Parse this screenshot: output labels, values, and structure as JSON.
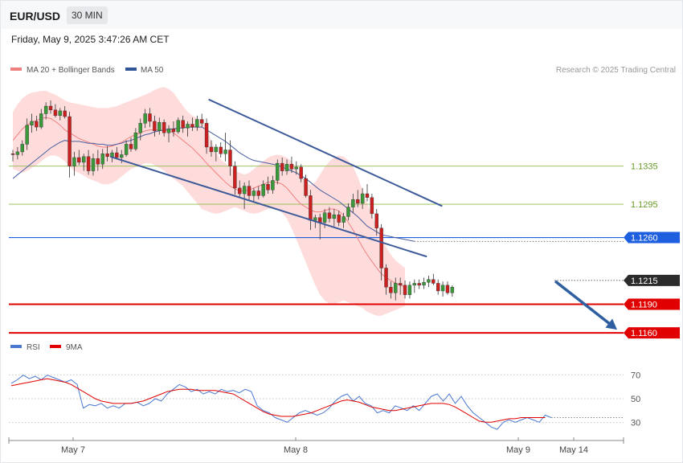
{
  "header": {
    "pair": "EUR/USD",
    "timeframe": "30 MIN"
  },
  "timestamp": "Friday, May 9, 2025 3:47:26 AM CET",
  "legend": [
    {
      "label": "MA 20 + Bollinger Bands",
      "color": "#f08080"
    },
    {
      "label": "MA 50",
      "color": "#2f5597"
    }
  ],
  "rsi_legend": [
    {
      "label": "RSI",
      "color": "#4a78d0"
    },
    {
      "label": "9MA",
      "color": "#e00000"
    }
  ],
  "copyright": "Research © 2025 Trading Central",
  "colors": {
    "bollinger": "#ffd6d6",
    "candle_up": "#3a9a3a",
    "candle_down": "#cc1f1f",
    "channel": "#3d5a99",
    "arrow": "#2f5fa0"
  },
  "chart_data": {
    "type": "candlestick",
    "ylim": [
      1.1155,
      1.1425
    ],
    "x_tick_labels": [
      "May 7",
      "May 8",
      "May 9",
      "May 14"
    ],
    "price_levels": [
      {
        "label": "1.1335",
        "value": 1.1335,
        "kind": "resistance",
        "color": "#8dbb4d"
      },
      {
        "label": "1.1295",
        "value": 1.1295,
        "kind": "resistance",
        "color": "#8dbb4d"
      },
      {
        "label": "1.1260",
        "value": 1.126,
        "kind": "pivot",
        "color": "#1e5fe0"
      },
      {
        "label": "1.1215",
        "value": 1.1215,
        "kind": "last",
        "color": "#222222"
      },
      {
        "label": "1.1190",
        "value": 1.119,
        "kind": "support",
        "color": "#e00000"
      },
      {
        "label": "1.1160",
        "value": 1.116,
        "kind": "support",
        "color": "#e00000"
      }
    ],
    "candles": [
      [
        1.1348,
        1.1352,
        1.134,
        1.1347
      ],
      [
        1.1347,
        1.1355,
        1.1342,
        1.135
      ],
      [
        1.135,
        1.1362,
        1.1346,
        1.1358
      ],
      [
        1.1358,
        1.1385,
        1.1352,
        1.1378
      ],
      [
        1.1378,
        1.139,
        1.137,
        1.1382
      ],
      [
        1.1382,
        1.1388,
        1.1372,
        1.1376
      ],
      [
        1.1376,
        1.1395,
        1.1374,
        1.139
      ],
      [
        1.139,
        1.1402,
        1.1384,
        1.1398
      ],
      [
        1.1398,
        1.1404,
        1.139,
        1.1394
      ],
      [
        1.1394,
        1.14,
        1.1386,
        1.1388
      ],
      [
        1.1388,
        1.1396,
        1.1383,
        1.1393
      ],
      [
        1.1393,
        1.1398,
        1.1385,
        1.1387
      ],
      [
        1.1387,
        1.1392,
        1.1323,
        1.1335
      ],
      [
        1.1335,
        1.135,
        1.1325,
        1.1344
      ],
      [
        1.1344,
        1.1352,
        1.1336,
        1.1339
      ],
      [
        1.1339,
        1.1348,
        1.133,
        1.1345
      ],
      [
        1.1345,
        1.1352,
        1.1326,
        1.133
      ],
      [
        1.133,
        1.1348,
        1.1325,
        1.1343
      ],
      [
        1.1343,
        1.1352,
        1.133,
        1.1337
      ],
      [
        1.1337,
        1.1353,
        1.1332,
        1.1348
      ],
      [
        1.1348,
        1.1356,
        1.134,
        1.1345
      ],
      [
        1.1345,
        1.1352,
        1.1339,
        1.1349
      ],
      [
        1.1349,
        1.1355,
        1.1342,
        1.1344
      ],
      [
        1.1344,
        1.1352,
        1.1338,
        1.1347
      ],
      [
        1.1347,
        1.1362,
        1.1345,
        1.1358
      ],
      [
        1.1358,
        1.1365,
        1.135,
        1.1353
      ],
      [
        1.1353,
        1.1375,
        1.1351,
        1.137
      ],
      [
        1.137,
        1.1385,
        1.1362,
        1.138
      ],
      [
        1.138,
        1.1395,
        1.1375,
        1.139
      ],
      [
        1.139,
        1.1396,
        1.1376,
        1.1382
      ],
      [
        1.1382,
        1.1388,
        1.1366,
        1.1372
      ],
      [
        1.1372,
        1.1386,
        1.1368,
        1.1381
      ],
      [
        1.1381,
        1.1384,
        1.1366,
        1.137
      ],
      [
        1.137,
        1.1378,
        1.136,
        1.1374
      ],
      [
        1.1374,
        1.1382,
        1.1366,
        1.1371
      ],
      [
        1.1371,
        1.1386,
        1.1369,
        1.1383
      ],
      [
        1.1383,
        1.1388,
        1.137,
        1.1375
      ],
      [
        1.1375,
        1.1382,
        1.1366,
        1.1379
      ],
      [
        1.1379,
        1.1386,
        1.1372,
        1.1376
      ],
      [
        1.1376,
        1.1388,
        1.1372,
        1.1384
      ],
      [
        1.1384,
        1.139,
        1.1376,
        1.138
      ],
      [
        1.138,
        1.1385,
        1.1348,
        1.1355
      ],
      [
        1.1355,
        1.1362,
        1.1345,
        1.135
      ],
      [
        1.135,
        1.1358,
        1.134,
        1.1355
      ],
      [
        1.1355,
        1.136,
        1.1344,
        1.1348
      ],
      [
        1.1348,
        1.137,
        1.134,
        1.1352
      ],
      [
        1.1352,
        1.1362,
        1.1325,
        1.1335
      ],
      [
        1.1335,
        1.134,
        1.1305,
        1.1312
      ],
      [
        1.1312,
        1.132,
        1.1302,
        1.1306
      ],
      [
        1.1306,
        1.1318,
        1.129,
        1.1314
      ],
      [
        1.1314,
        1.132,
        1.1298,
        1.1304
      ],
      [
        1.1304,
        1.1312,
        1.1298,
        1.1309
      ],
      [
        1.1309,
        1.1314,
        1.13,
        1.1304
      ],
      [
        1.1304,
        1.132,
        1.1302,
        1.1316
      ],
      [
        1.1316,
        1.1324,
        1.1306,
        1.131
      ],
      [
        1.131,
        1.1325,
        1.1306,
        1.132
      ],
      [
        1.132,
        1.1342,
        1.1316,
        1.1338
      ],
      [
        1.1338,
        1.1344,
        1.1325,
        1.133
      ],
      [
        1.133,
        1.1342,
        1.1326,
        1.1337
      ],
      [
        1.1337,
        1.1345,
        1.1328,
        1.1332
      ],
      [
        1.1332,
        1.134,
        1.1326,
        1.1334
      ],
      [
        1.1334,
        1.1337,
        1.1318,
        1.1322
      ],
      [
        1.1322,
        1.1326,
        1.1302,
        1.1304
      ],
      [
        1.1304,
        1.131,
        1.1268,
        1.1278
      ],
      [
        1.1278,
        1.1284,
        1.127,
        1.1281
      ],
      [
        1.1281,
        1.1285,
        1.1258,
        1.1276
      ],
      [
        1.1276,
        1.129,
        1.127,
        1.1286
      ],
      [
        1.1286,
        1.1292,
        1.1276,
        1.128
      ],
      [
        1.128,
        1.129,
        1.1272,
        1.1284
      ],
      [
        1.1284,
        1.1288,
        1.1272,
        1.1276
      ],
      [
        1.1276,
        1.1286,
        1.127,
        1.1282
      ],
      [
        1.1282,
        1.1296,
        1.1278,
        1.1292
      ],
      [
        1.1292,
        1.1306,
        1.1286,
        1.13
      ],
      [
        1.13,
        1.131,
        1.1292,
        1.1296
      ],
      [
        1.1296,
        1.1312,
        1.129,
        1.1306
      ],
      [
        1.1306,
        1.1316,
        1.1298,
        1.1302
      ],
      [
        1.1302,
        1.1306,
        1.128,
        1.1285
      ],
      [
        1.1285,
        1.129,
        1.1262,
        1.127
      ],
      [
        1.127,
        1.1274,
        1.1215,
        1.1228
      ],
      [
        1.1228,
        1.1232,
        1.12,
        1.1208
      ],
      [
        1.1208,
        1.1214,
        1.1196,
        1.1202
      ],
      [
        1.1202,
        1.1218,
        1.1194,
        1.1212
      ],
      [
        1.1212,
        1.1218,
        1.12,
        1.121
      ],
      [
        1.121,
        1.1215,
        1.1196,
        1.12
      ],
      [
        1.12,
        1.1214,
        1.1196,
        1.121
      ],
      [
        1.121,
        1.1216,
        1.1202,
        1.1212
      ],
      [
        1.1212,
        1.1216,
        1.1206,
        1.121
      ],
      [
        1.121,
        1.1218,
        1.1206,
        1.1213
      ],
      [
        1.1213,
        1.122,
        1.1208,
        1.1216
      ],
      [
        1.1216,
        1.1222,
        1.121,
        1.1212
      ],
      [
        1.1212,
        1.1216,
        1.12,
        1.1204
      ],
      [
        1.1204,
        1.1214,
        1.1198,
        1.121
      ],
      [
        1.121,
        1.1214,
        1.12,
        1.1202
      ],
      [
        1.1202,
        1.121,
        1.1198,
        1.1208
      ]
    ],
    "ma50": [
      1.1322,
      1.1326,
      1.133,
      1.1334,
      1.1338,
      1.1342,
      1.1346,
      1.135,
      1.1354,
      1.1357,
      1.136,
      1.1362,
      1.1361,
      1.1361,
      1.1361,
      1.136,
      1.1359,
      1.1359,
      1.1358,
      1.1358,
      1.1357,
      1.1357,
      1.1358,
      1.1359,
      1.1361,
      1.1362,
      1.1364,
      1.1366,
      1.1368,
      1.1369,
      1.1371,
      1.1372,
      1.1373,
      1.1374,
      1.1374,
      1.1375,
      1.1375,
      1.1376,
      1.1376,
      1.1376,
      1.1376,
      1.1373,
      1.137,
      1.1367,
      1.1364,
      1.1361,
      1.1357,
      1.1353,
      1.1349,
      1.1346,
      1.1343,
      1.1341,
      1.134,
      1.1339,
      1.1338,
      1.1337,
      1.1336,
      1.1334,
      1.1332,
      1.133,
      1.1328,
      1.1325,
      1.1322,
      1.1318,
      1.1314,
      1.131,
      1.1307,
      1.1304,
      1.1301,
      1.1298,
      1.1294,
      1.129,
      1.1286,
      1.1282,
      1.1277,
      1.1272,
      1.1269,
      1.1266,
      1.1263,
      1.1262,
      1.1261,
      1.126,
      1.1259,
      1.1258,
      1.1257,
      1.1256
    ],
    "ma20": [
      1.1362,
      1.1368,
      1.1374,
      1.1378,
      1.1381,
      1.1383,
      1.1385,
      1.1386,
      1.1385,
      1.1382,
      1.1378,
      1.1373,
      1.137,
      1.1367,
      1.1364,
      1.1362,
      1.136,
      1.1358,
      1.1356,
      1.1355,
      1.1355,
      1.1356,
      1.1358,
      1.136,
      1.1363,
      1.1366,
      1.1368,
      1.137,
      1.1372,
      1.1373,
      1.1373,
      1.1373,
      1.1372,
      1.1372,
      1.137,
      1.1366,
      1.1362,
      1.1358,
      1.1354,
      1.1349,
      1.1344,
      1.1338,
      1.1333,
      1.1328,
      1.1323,
      1.1318,
      1.1314,
      1.1311,
      1.1309,
      1.1309,
      1.131,
      1.1312,
      1.1314,
      1.1316,
      1.1318,
      1.1318,
      1.1318,
      1.1316,
      1.1312,
      1.1306,
      1.13,
      1.1295,
      1.1292,
      1.1289,
      1.1287,
      1.1287,
      1.1288,
      1.129,
      1.129,
      1.1288,
      1.1283,
      1.1276,
      1.1268,
      1.1259,
      1.125,
      1.1242,
      1.1235,
      1.1228,
      1.1222,
      1.1218,
      1.1215,
      1.1212,
      1.121,
      1.1208
    ],
    "bb_upper": [
      1.1392,
      1.14,
      1.1406,
      1.141,
      1.1412,
      1.1413,
      1.1414,
      1.1414,
      1.1412,
      1.141,
      1.1407,
      1.1404,
      1.1402,
      1.1401,
      1.14,
      1.1399,
      1.1398,
      1.1397,
      1.1396,
      1.1396,
      1.1396,
      1.1397,
      1.1398,
      1.14,
      1.1402,
      1.1404,
      1.1406,
      1.1408,
      1.141,
      1.1412,
      1.1415,
      1.1417,
      1.1418,
      1.1416,
      1.1412,
      1.1405,
      1.1398,
      1.1392,
      1.1388,
      1.1385,
      1.1384,
      1.1375,
      1.1362,
      1.135,
      1.1342,
      1.1338,
      1.1334,
      1.133,
      1.1328,
      1.1326,
      1.1328,
      1.1332,
      1.1336,
      1.134,
      1.1344,
      1.1346,
      1.1347,
      1.1346,
      1.1344,
      1.134,
      1.1332,
      1.1324,
      1.1318,
      1.1315,
      1.1318,
      1.1326,
      1.1334,
      1.134,
      1.1344,
      1.1346,
      1.1345,
      1.1341,
      1.1334,
      1.1324,
      1.131,
      1.1296,
      1.1284,
      1.1272,
      1.126,
      1.125,
      1.1242,
      1.1236,
      1.1232,
      1.1228
    ],
    "bb_lower": [
      1.1332,
      1.133,
      1.1328,
      1.133,
      1.1333,
      1.1336,
      1.134,
      1.1344,
      1.1346,
      1.1346,
      1.1344,
      1.134,
      1.1335,
      1.133,
      1.1328,
      1.1325,
      1.1322,
      1.132,
      1.1318,
      1.1316,
      1.1316,
      1.1317,
      1.132,
      1.1324,
      1.1328,
      1.1332,
      1.1334,
      1.1336,
      1.1338,
      1.1338,
      1.1336,
      1.1333,
      1.133,
      1.1326,
      1.1322,
      1.1318,
      1.1314,
      1.1308,
      1.1302,
      1.1296,
      1.129,
      1.1288,
      1.1286,
      1.1285,
      1.1286,
      1.1288,
      1.129,
      1.1292,
      1.129,
      1.1288,
      1.1286,
      1.1285,
      1.1286,
      1.1288,
      1.129,
      1.1291,
      1.129,
      1.1286,
      1.128,
      1.127,
      1.1258,
      1.1246,
      1.1234,
      1.1222,
      1.121,
      1.12,
      1.1194,
      1.119,
      1.119,
      1.1192,
      1.1194,
      1.1192,
      1.119,
      1.1188,
      1.1186,
      1.1182,
      1.118,
      1.1178,
      1.1178,
      1.118,
      1.1182,
      1.1184,
      1.1186,
      1.1188
    ],
    "channel_upper": [
      [
        0.325,
        1.1405
      ],
      [
        0.705,
        1.1293
      ]
    ],
    "channel_lower": [
      [
        0.165,
        1.1345
      ],
      [
        0.68,
        1.124
      ]
    ],
    "projection": {
      "from": 1.1215,
      "to": 1.116
    },
    "rsi": {
      "ylim": [
        20,
        80
      ],
      "y_tick_labels": [
        "70",
        "50",
        "30"
      ],
      "y_ticks": [
        70,
        50,
        30
      ],
      "rsi": [
        63,
        66,
        70,
        67,
        69,
        66,
        70,
        68,
        66,
        64,
        66,
        62,
        42,
        45,
        44,
        46,
        42,
        44,
        42,
        46,
        46,
        47,
        44,
        46,
        50,
        48,
        54,
        58,
        62,
        60,
        56,
        58,
        54,
        56,
        54,
        58,
        56,
        57,
        55,
        58,
        56,
        44,
        40,
        38,
        34,
        32,
        30,
        34,
        38,
        40,
        38,
        36,
        38,
        42,
        48,
        52,
        54,
        48,
        52,
        46,
        44,
        38,
        40,
        38,
        44,
        42,
        40,
        44,
        40,
        46,
        52,
        54,
        48,
        54,
        46,
        52,
        44,
        38,
        34,
        30,
        26,
        24,
        30,
        32,
        30,
        32,
        34,
        32,
        30,
        36,
        34
      ],
      "ma9": [
        61,
        62,
        63,
        64,
        65,
        66,
        67,
        66,
        65,
        64,
        62,
        59,
        56,
        53,
        50,
        48,
        47,
        46,
        46,
        46,
        46,
        47,
        48,
        50,
        52,
        54,
        56,
        57,
        58,
        58,
        58,
        57,
        57,
        57,
        57,
        56,
        55,
        54,
        51,
        48,
        45,
        42,
        39,
        37,
        36,
        35,
        35,
        35,
        36,
        37,
        38,
        40,
        42,
        44,
        46,
        48,
        49,
        48,
        47,
        45,
        43,
        42,
        41,
        40,
        40,
        41,
        42,
        43,
        44,
        45,
        46,
        46,
        46,
        45,
        43,
        40,
        37,
        34,
        31,
        30,
        30,
        31,
        32,
        33,
        33,
        34,
        34,
        34,
        34,
        34
      ]
    }
  }
}
